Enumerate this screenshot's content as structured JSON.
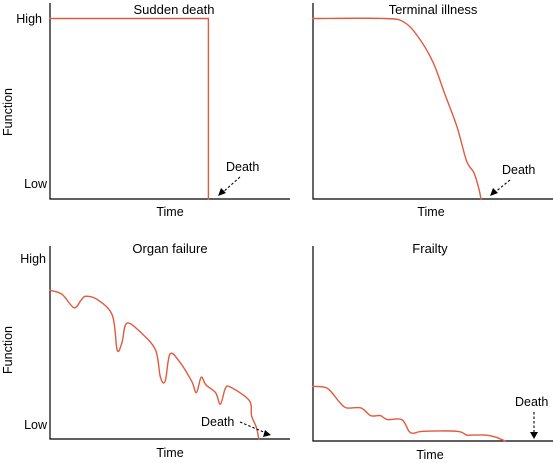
{
  "colors": {
    "curve": "#e05a3f",
    "axis": "#000000"
  },
  "chart_data": [
    {
      "type": "line",
      "title": "Sudden death",
      "xlabel": "Time",
      "ylabel": "Function",
      "ytick_labels": [
        "High",
        "Low"
      ],
      "annotation": "Death",
      "xlim": [
        0,
        1
      ],
      "ylim": [
        0,
        1
      ],
      "series": [
        {
          "x": [
            0,
            0.66,
            0.66
          ],
          "y": [
            0.95,
            0.95,
            0
          ]
        }
      ]
    },
    {
      "type": "line",
      "title": "Terminal illness",
      "xlabel": "Time",
      "annotation": "Death",
      "xlim": [
        0,
        1
      ],
      "ylim": [
        0,
        1
      ],
      "series": [
        {
          "x": [
            0,
            0.3,
            0.38,
            0.44,
            0.5,
            0.55,
            0.6,
            0.64,
            0.67,
            0.69,
            0.7
          ],
          "y": [
            0.95,
            0.95,
            0.93,
            0.85,
            0.72,
            0.55,
            0.38,
            0.2,
            0.14,
            0.06,
            0
          ]
        }
      ]
    },
    {
      "type": "line",
      "title": "Organ failure",
      "xlabel": "Time",
      "ylabel": "Function",
      "ytick_labels": [
        "High",
        "Low"
      ],
      "annotation": "Death",
      "xlim": [
        0,
        1
      ],
      "ylim": [
        0,
        1
      ],
      "series": [
        {
          "x": [
            0,
            0.05,
            0.1,
            0.13,
            0.15,
            0.2,
            0.26,
            0.28,
            0.3,
            0.32,
            0.38,
            0.44,
            0.46,
            0.48,
            0.5,
            0.54,
            0.59,
            0.61,
            0.63,
            0.65,
            0.69,
            0.71,
            0.73,
            0.75,
            0.83,
            0.84,
            0.86,
            0.87
          ],
          "y": [
            0.77,
            0.75,
            0.68,
            0.72,
            0.74,
            0.72,
            0.64,
            0.46,
            0.5,
            0.6,
            0.55,
            0.46,
            0.32,
            0.3,
            0.44,
            0.4,
            0.3,
            0.24,
            0.32,
            0.28,
            0.24,
            0.18,
            0.26,
            0.27,
            0.2,
            0.12,
            0.06,
            0.0
          ]
        }
      ]
    },
    {
      "type": "line",
      "title": "Frailty",
      "xlabel": "Time",
      "annotation": "Death",
      "xlim": [
        0,
        1
      ],
      "ylim": [
        0,
        1
      ],
      "series": [
        {
          "x": [
            0,
            0.06,
            0.11,
            0.14,
            0.2,
            0.24,
            0.28,
            0.31,
            0.37,
            0.4,
            0.42,
            0.46,
            0.6,
            0.64,
            0.66,
            0.72,
            0.76,
            0.8
          ],
          "y": [
            0.28,
            0.27,
            0.2,
            0.17,
            0.17,
            0.13,
            0.13,
            0.11,
            0.11,
            0.05,
            0.04,
            0.05,
            0.05,
            0.03,
            0.03,
            0.03,
            0.02,
            0.0
          ]
        }
      ]
    }
  ]
}
